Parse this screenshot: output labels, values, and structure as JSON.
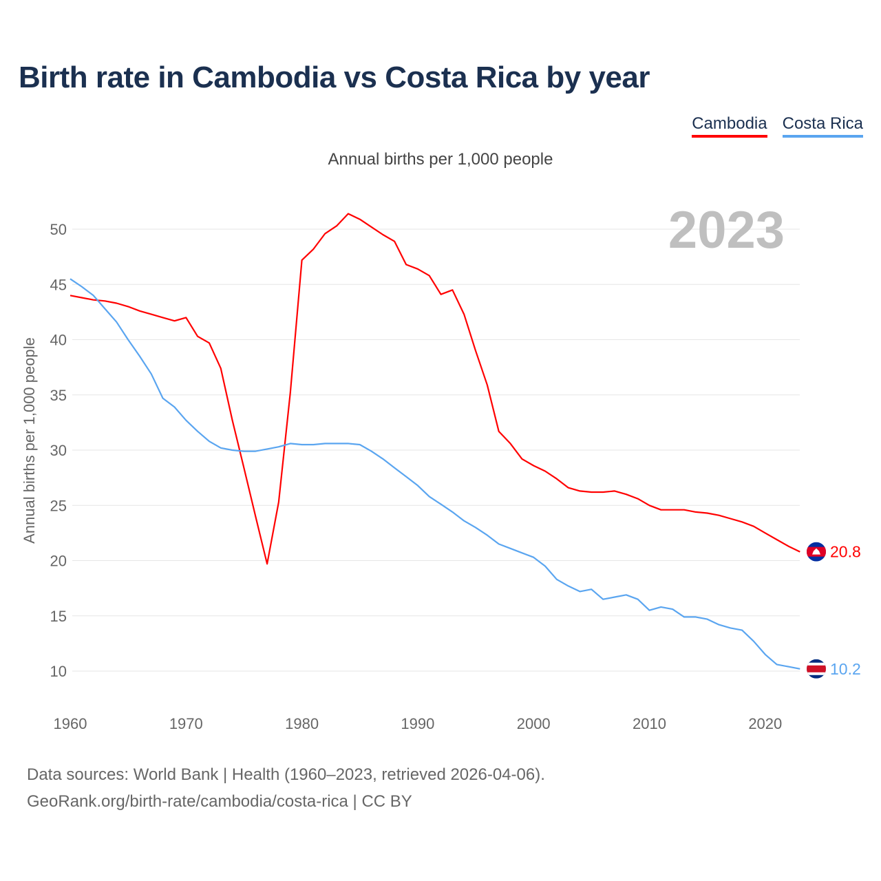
{
  "title": "Birth rate in Cambodia vs Costa Rica by year",
  "subtitle": "Annual births per 1,000 people",
  "legend": [
    {
      "label": "Cambodia",
      "color": "#ff0000"
    },
    {
      "label": "Costa Rica",
      "color": "#5aa5f0"
    }
  ],
  "footer": {
    "line1": "Data sources: World Bank | Health (1960–2023, retrieved 2026-04-06).",
    "line2": "GeoRank.org/birth-rate/cambodia/costa-rica | CC BY"
  },
  "chart_data": {
    "type": "line",
    "title": "Birth rate in Cambodia vs Costa Rica by year",
    "ylabel": "Annual births per 1,000 people",
    "xlabel": "",
    "year_label": "2023",
    "xlim": [
      1960,
      2023
    ],
    "ylim": [
      8,
      52
    ],
    "x_ticks": [
      1960,
      1970,
      1980,
      1990,
      2000,
      2010,
      2020
    ],
    "y_ticks": [
      10,
      15,
      20,
      25,
      30,
      35,
      40,
      45,
      50
    ],
    "grid": true,
    "legend_position": "top-right",
    "x_start": 1960,
    "series": [
      {
        "name": "Cambodia",
        "color": "#ff0000",
        "end_label": "20.8",
        "values": [
          44.0,
          43.8,
          43.6,
          43.5,
          43.3,
          43.0,
          42.6,
          42.3,
          42.0,
          41.7,
          42.0,
          40.3,
          39.7,
          37.4,
          32.7,
          28.4,
          24.0,
          19.7,
          25.3,
          35.2,
          47.2,
          48.2,
          49.6,
          50.3,
          51.4,
          50.9,
          50.2,
          49.5,
          48.9,
          46.8,
          46.4,
          45.8,
          44.1,
          44.5,
          42.3,
          39.0,
          35.9,
          31.7,
          30.6,
          29.2,
          28.6,
          28.1,
          27.4,
          26.6,
          26.3,
          26.2,
          26.2,
          26.3,
          26.0,
          25.6,
          25.0,
          24.6,
          24.6,
          24.6,
          24.4,
          24.3,
          24.1,
          23.8,
          23.5,
          23.1,
          22.5,
          21.9,
          21.3,
          20.8
        ]
      },
      {
        "name": "Costa Rica",
        "color": "#5aa5f0",
        "end_label": "10.2",
        "values": [
          45.5,
          44.8,
          44.0,
          42.8,
          41.6,
          40.0,
          38.5,
          36.9,
          34.7,
          33.9,
          32.7,
          31.7,
          30.8,
          30.2,
          30.0,
          29.9,
          29.9,
          30.1,
          30.3,
          30.6,
          30.5,
          30.5,
          30.6,
          30.6,
          30.6,
          30.5,
          29.9,
          29.2,
          28.4,
          27.6,
          26.8,
          25.8,
          25.1,
          24.4,
          23.6,
          23.0,
          22.3,
          21.5,
          21.1,
          20.7,
          20.3,
          19.5,
          18.3,
          17.7,
          17.2,
          17.4,
          16.5,
          16.7,
          16.9,
          16.5,
          15.5,
          15.8,
          15.6,
          14.9,
          14.9,
          14.7,
          14.2,
          13.9,
          13.7,
          12.7,
          11.5,
          10.6,
          10.4,
          10.2
        ]
      }
    ]
  }
}
